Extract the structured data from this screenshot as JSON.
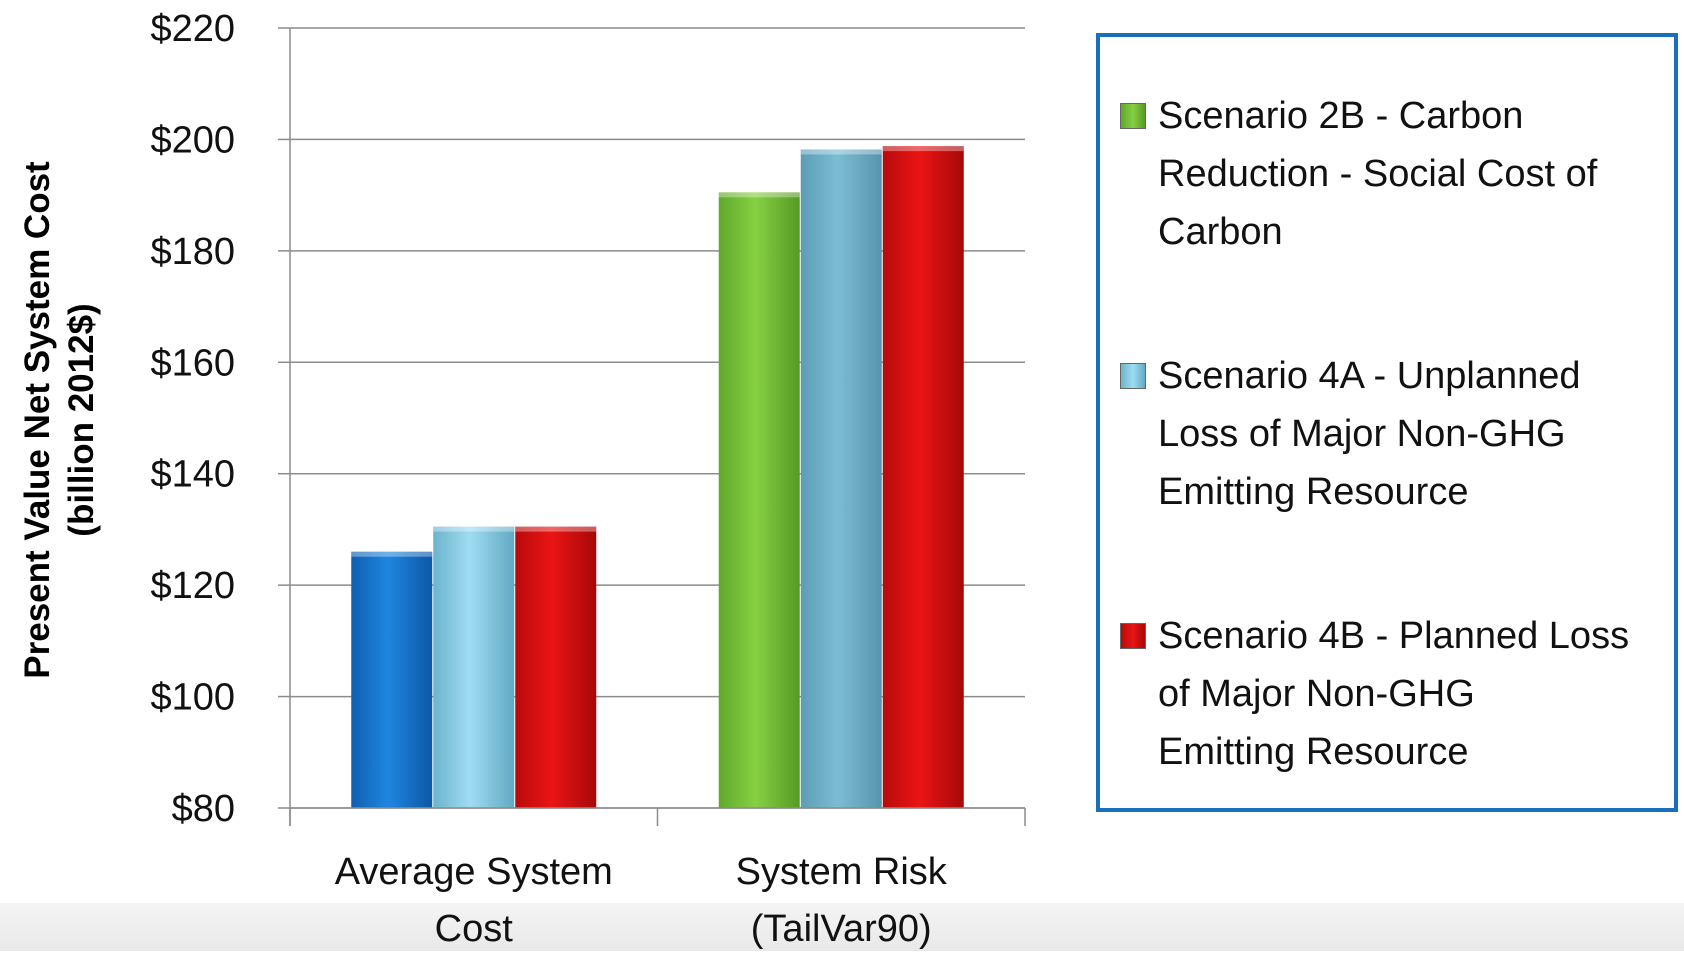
{
  "chart_data": {
    "type": "bar",
    "categories": [
      "Average System Cost",
      "System Risk (TailVar90)"
    ],
    "category_lines": [
      [
        "Average System",
        "Cost"
      ],
      [
        "System Risk",
        "(TailVar90)"
      ]
    ],
    "ylabel_lines": [
      "Present Value Net System Cost",
      "(billion 2012$)"
    ],
    "ylim": [
      80,
      220
    ],
    "yticks": [
      80,
      100,
      120,
      140,
      160,
      180,
      200,
      220
    ],
    "ytick_labels": [
      "$80",
      "$100",
      "$120",
      "$140",
      "$160",
      "$180",
      "$200",
      "$220"
    ],
    "grid": true,
    "legend_position": "right",
    "bars": [
      {
        "category": 0,
        "series": 0,
        "value": 126.0,
        "color": "#1a7fdc"
      },
      {
        "category": 0,
        "series": 1,
        "value": 130.5,
        "color": "#8fd3ee"
      },
      {
        "category": 0,
        "series": 2,
        "value": 130.5,
        "color": "#e01010"
      },
      {
        "category": 1,
        "series": 0,
        "value": 190.5,
        "color": "#7cc63b"
      },
      {
        "category": 1,
        "series": 1,
        "value": 198.2,
        "color": "#8fd3ee"
      },
      {
        "category": 1,
        "series": 2,
        "value": 198.8,
        "color": "#e01010"
      }
    ],
    "series": [
      {
        "name": "Scenario 2B - Carbon Reduction - Social Cost of Carbon",
        "color": "#7cc63b"
      },
      {
        "name": "Scenario 4A - Unplanned Loss of Major Non-GHG Emitting Resource",
        "color": "#8fd3ee"
      },
      {
        "name": "Scenario 4B - Planned Loss of Major Non-GHG Emitting Resource",
        "color": "#e01010"
      }
    ]
  },
  "legend": {
    "items": [
      {
        "lines": [
          "Scenario 2B - Carbon",
          "Reduction - Social Cost of",
          "Carbon"
        ],
        "color": "#7cc63b"
      },
      {
        "lines": [
          "Scenario 4A - Unplanned",
          "Loss of Major Non-GHG",
          "Emitting Resource"
        ],
        "color": "#8fd3ee"
      },
      {
        "lines": [
          "Scenario 4B - Planned Loss",
          "of Major Non-GHG",
          "Emitting Resource"
        ],
        "color": "#e01010"
      }
    ]
  }
}
